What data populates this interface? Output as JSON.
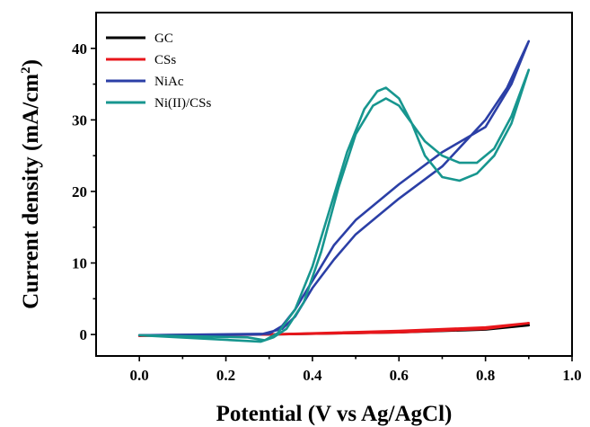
{
  "chart_data": {
    "type": "line",
    "xlabel": "Potential (V vs Ag/AgCl)",
    "ylabel_main": "Current density (mA/cm",
    "ylabel_sup": "2",
    "ylabel_end": ")",
    "xlim": [
      -0.1,
      1.0
    ],
    "ylim": [
      -3,
      45
    ],
    "xticks": [
      "0.0",
      "0.2",
      "0.4",
      "0.6",
      "0.8",
      "1.0"
    ],
    "xtick_values": [
      0.0,
      0.2,
      0.4,
      0.6,
      0.8,
      1.0
    ],
    "yticks": [
      "0",
      "10",
      "20",
      "30",
      "40"
    ],
    "ytick_values": [
      0,
      10,
      20,
      30,
      40
    ],
    "legend_position": "top-left",
    "series": [
      {
        "name": "GC",
        "color": "#000000",
        "x": [
          0.0,
          0.3,
          0.6,
          0.8,
          0.9,
          0.8,
          0.6,
          0.3,
          0.0
        ],
        "y": [
          -0.1,
          0.0,
          0.4,
          0.9,
          1.3,
          0.7,
          0.3,
          0.0,
          -0.1
        ]
      },
      {
        "name": "CSs",
        "color": "#e8161b",
        "x": [
          0.0,
          0.3,
          0.6,
          0.8,
          0.9,
          0.8,
          0.6,
          0.3,
          0.0
        ],
        "y": [
          -0.2,
          0.0,
          0.5,
          1.0,
          1.6,
          0.8,
          0.3,
          0.0,
          -0.2
        ]
      },
      {
        "name": "NiAc",
        "color": "#2b3fa6",
        "x": [
          0.0,
          0.28,
          0.33,
          0.36,
          0.4,
          0.45,
          0.5,
          0.55,
          0.6,
          0.7,
          0.8,
          0.85,
          0.9,
          0.86,
          0.8,
          0.7,
          0.6,
          0.55,
          0.5,
          0.45,
          0.4,
          0.36,
          0.33,
          0.3,
          0.0
        ],
        "y": [
          -0.1,
          0.0,
          0.8,
          2.5,
          6.5,
          10.5,
          14.0,
          16.5,
          19.0,
          23.5,
          30.0,
          34.5,
          41.0,
          35.0,
          29.0,
          25.5,
          21.0,
          18.5,
          16.0,
          12.5,
          7.5,
          3.5,
          1.2,
          0.1,
          -0.1
        ]
      },
      {
        "name": "Ni(II)/CSs",
        "color": "#17968f",
        "x": [
          0.0,
          0.25,
          0.29,
          0.32,
          0.36,
          0.4,
          0.44,
          0.48,
          0.52,
          0.55,
          0.57,
          0.6,
          0.63,
          0.66,
          0.7,
          0.74,
          0.78,
          0.82,
          0.86,
          0.9,
          0.86,
          0.82,
          0.78,
          0.74,
          0.7,
          0.66,
          0.63,
          0.6,
          0.57,
          0.54,
          0.5,
          0.46,
          0.42,
          0.38,
          0.34,
          0.31,
          0.28,
          0.0
        ],
        "y": [
          -0.1,
          -0.4,
          -0.8,
          0.2,
          3.5,
          9.5,
          17.5,
          25.5,
          31.5,
          34.0,
          34.5,
          33.0,
          29.5,
          25.0,
          22.0,
          21.5,
          22.5,
          25.0,
          29.5,
          37.0,
          30.5,
          26.0,
          24.0,
          24.0,
          25.0,
          27.0,
          29.5,
          32.0,
          33.0,
          32.0,
          28.0,
          20.5,
          11.5,
          4.5,
          0.8,
          -0.4,
          -1.0,
          -0.1
        ]
      }
    ]
  }
}
